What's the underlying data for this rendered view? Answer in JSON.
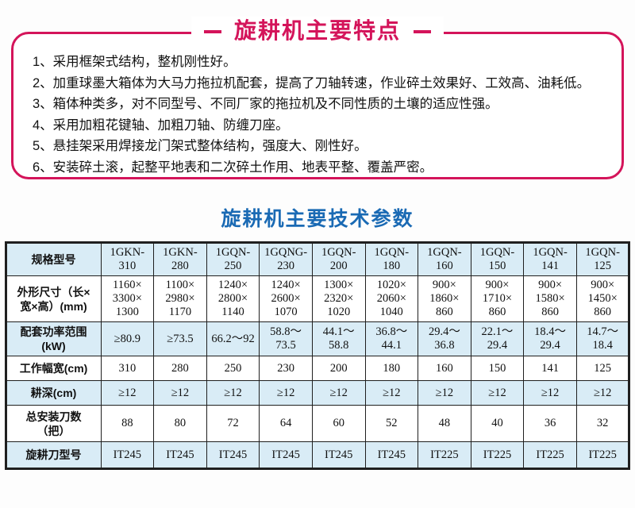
{
  "colors": {
    "accent_red": "#d4145a",
    "accent_blue": "#1a6ab4",
    "cell_blue": "#d9ecf6",
    "table_border": "#1f1f1f",
    "text": "#111111"
  },
  "features_box": {
    "title": "旋耕机主要特点",
    "items": [
      "1、采用框架式结构，整机刚性好。",
      "2、加重球墨大箱体为大马力拖拉机配套，提高了刀轴转速，作业碎土效果好、工效高、油耗低。",
      "3、箱体种类多，对不同型号、不同厂家的拖拉机及不同性质的土壤的适应性强。",
      "4、采用加粗花键轴、加粗刀轴、防缠刀座。",
      "5、悬挂架采用焊接龙门架式整体结构，强度大、刚性好。",
      "6、安装碎土滚，起整平地表和二次碎土作用、地表平整、覆盖严密。"
    ]
  },
  "specs": {
    "title": "旋耕机主要技术参数",
    "header_label": "规格型号",
    "models": [
      "1GKN-310",
      "1GKN-280",
      "1GQN-250",
      "1GQNG-230",
      "1GQN-200",
      "1GQN-180",
      "1GQN-160",
      "1GQN-150",
      "1GQN-141",
      "1GQN-125"
    ],
    "rows": [
      {
        "label": "外形尺寸（长×\n宽×高）(mm)",
        "shaded": false,
        "values": [
          "1160×\n3300×\n1300",
          "1100×\n2980×\n1170",
          "1240×\n2800×\n1140",
          "1240×\n2600×\n1070",
          "1300×\n2320×\n1020",
          "1020×\n2060×\n1040",
          "900×\n1860×\n860",
          "900×\n1710×\n860",
          "900×\n1580×\n860",
          "900×\n1450×\n860"
        ]
      },
      {
        "label": "配套功率范围\n(kW)",
        "shaded": true,
        "values": [
          "≥80.9",
          "≥73.5",
          "66.2～92",
          "58.8～\n73.5",
          "44.1～\n58.8",
          "36.8～\n44.1",
          "29.4～\n36.8",
          "22.1～\n29.4",
          "18.4～\n29.4",
          "14.7～\n18.4"
        ]
      },
      {
        "label": "工作幅宽(cm)",
        "shaded": false,
        "values": [
          "310",
          "280",
          "250",
          "230",
          "200",
          "180",
          "160",
          "150",
          "141",
          "125"
        ]
      },
      {
        "label": "耕深(cm)",
        "shaded": true,
        "values": [
          "≥12",
          "≥12",
          "≥12",
          "≥12",
          "≥12",
          "≥12",
          "≥12",
          "≥12",
          "≥12",
          "≥12"
        ]
      },
      {
        "label": "总安装刀数\n（把）",
        "shaded": false,
        "values": [
          "88",
          "80",
          "72",
          "64",
          "60",
          "52",
          "48",
          "40",
          "36",
          "32"
        ]
      },
      {
        "label": "旋耕刀型号",
        "shaded": true,
        "values": [
          "IT245",
          "IT245",
          "IT245",
          "IT245",
          "IT245",
          "IT245",
          "IT225",
          "IT225",
          "IT225",
          "IT225"
        ]
      }
    ]
  }
}
